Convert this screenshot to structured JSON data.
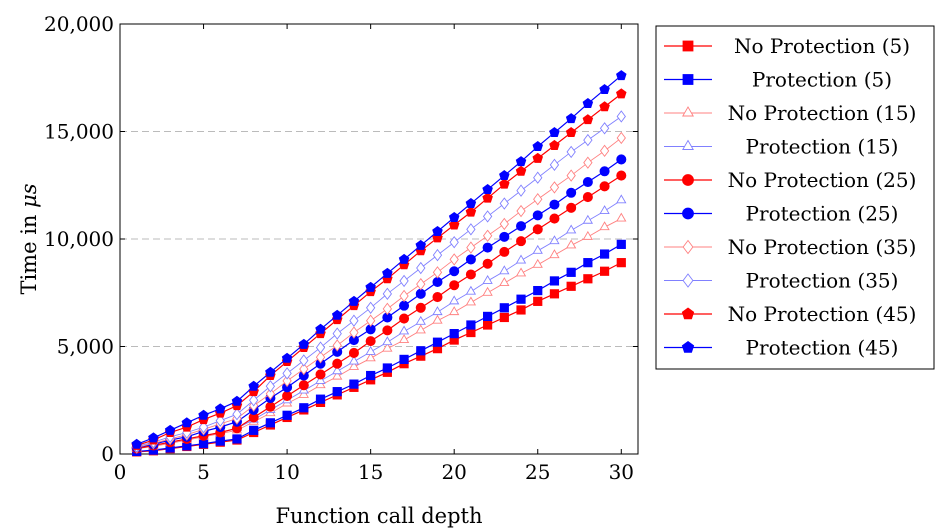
{
  "chart_data": {
    "type": "line",
    "title": "",
    "xlabel": "Function call depth",
    "ylabel": "Time in μs",
    "ylabel_prefix": "Time in ",
    "ylabel_unit": "μs",
    "xlim": [
      0,
      31
    ],
    "ylim": [
      0,
      20000
    ],
    "x_ticks": [
      0,
      5,
      10,
      15,
      20,
      25,
      30
    ],
    "x_tick_labels": [
      "0",
      "5",
      "10",
      "15",
      "20",
      "25",
      "30"
    ],
    "y_ticks": [
      0,
      5000,
      10000,
      15000,
      20000
    ],
    "y_tick_labels": [
      "0",
      "5,000",
      "10,000",
      "15,000",
      "20,000"
    ],
    "grid": "horizontal dashed",
    "legend_position": "outside-right",
    "x": [
      1,
      2,
      3,
      4,
      5,
      6,
      7,
      8,
      9,
      10,
      11,
      12,
      13,
      14,
      15,
      16,
      17,
      18,
      19,
      20,
      21,
      22,
      23,
      24,
      25,
      26,
      27,
      28,
      29,
      30
    ],
    "series": [
      {
        "name": "No Protection (5)",
        "color": "#ff0000",
        "marker": "square",
        "filled": true,
        "values": [
          100,
          150,
          250,
          350,
          450,
          550,
          650,
          1000,
          1350,
          1700,
          2050,
          2400,
          2750,
          3100,
          3450,
          3800,
          4200,
          4550,
          4900,
          5300,
          5650,
          6000,
          6350,
          6700,
          7100,
          7450,
          7800,
          8150,
          8500,
          8900
        ]
      },
      {
        "name": "Protection (5)",
        "color": "#0000ff",
        "marker": "square",
        "filled": true,
        "values": [
          120,
          180,
          280,
          380,
          480,
          600,
          700,
          1100,
          1450,
          1800,
          2150,
          2550,
          2900,
          3250,
          3650,
          4000,
          4400,
          4800,
          5200,
          5600,
          6000,
          6400,
          6800,
          7200,
          7600,
          8050,
          8450,
          8900,
          9300,
          9750
        ]
      },
      {
        "name": "No Protection (15)",
        "color": "#ff8080",
        "marker": "triangle",
        "filled": false,
        "values": [
          250,
          350,
          500,
          650,
          800,
          950,
          1100,
          1500,
          1900,
          2350,
          2750,
          3200,
          3600,
          4050,
          4450,
          4900,
          5300,
          5750,
          6200,
          6600,
          7050,
          7500,
          7950,
          8400,
          8800,
          9250,
          9700,
          10100,
          10550,
          10950
        ]
      },
      {
        "name": "Protection (15)",
        "color": "#8080ff",
        "marker": "triangle",
        "filled": false,
        "values": [
          280,
          400,
          550,
          700,
          850,
          1000,
          1200,
          1600,
          2050,
          2500,
          2950,
          3400,
          3850,
          4300,
          4750,
          5200,
          5700,
          6150,
          6600,
          7100,
          7550,
          8050,
          8500,
          9000,
          9450,
          9900,
          10400,
          10850,
          11300,
          11800
        ]
      },
      {
        "name": "No Protection (25)",
        "color": "#ff0000",
        "marker": "circle",
        "filled": true,
        "values": [
          250,
          400,
          550,
          700,
          850,
          1000,
          1200,
          1700,
          2200,
          2700,
          3200,
          3700,
          4200,
          4700,
          5250,
          5750,
          6300,
          6800,
          7300,
          7850,
          8350,
          8850,
          9400,
          9900,
          10450,
          10950,
          11450,
          11950,
          12450,
          12950
        ]
      },
      {
        "name": "Protection (25)",
        "color": "#0000ff",
        "marker": "circle",
        "filled": true,
        "values": [
          300,
          450,
          650,
          800,
          1050,
          1250,
          1500,
          2050,
          2600,
          3100,
          3650,
          4200,
          4750,
          5300,
          5800,
          6350,
          6900,
          7450,
          8000,
          8500,
          9050,
          9600,
          10100,
          10600,
          11100,
          11600,
          12150,
          12650,
          13150,
          13700
        ]
      },
      {
        "name": "No Protection (35)",
        "color": "#ff8080",
        "marker": "diamond",
        "filled": false,
        "values": [
          300,
          500,
          700,
          900,
          1150,
          1400,
          1650,
          2250,
          2800,
          3400,
          3950,
          4500,
          5050,
          5650,
          6200,
          6750,
          7350,
          7900,
          8450,
          9050,
          9600,
          10150,
          10700,
          11300,
          11850,
          12400,
          12950,
          13550,
          14100,
          14700
        ]
      },
      {
        "name": "Protection (35)",
        "color": "#8080ff",
        "marker": "diamond",
        "filled": false,
        "values": [
          350,
          550,
          800,
          1000,
          1250,
          1550,
          1850,
          2500,
          3150,
          3750,
          4350,
          4950,
          5600,
          6200,
          6800,
          7450,
          8050,
          8650,
          9250,
          9850,
          10450,
          11050,
          11650,
          12250,
          12850,
          13450,
          14050,
          14600,
          15150,
          15700
        ]
      },
      {
        "name": "No Protection (45)",
        "color": "#ff0000",
        "marker": "pentagon",
        "filled": true,
        "values": [
          400,
          650,
          1000,
          1250,
          1600,
          1900,
          2250,
          2900,
          3650,
          4300,
          4950,
          5600,
          6250,
          6900,
          7550,
          8150,
          8800,
          9450,
          10050,
          10650,
          11250,
          11900,
          12550,
          13150,
          13750,
          14350,
          14950,
          15550,
          16150,
          16750
        ]
      },
      {
        "name": "Protection (45)",
        "color": "#0000ff",
        "marker": "pentagon",
        "filled": true,
        "values": [
          450,
          750,
          1100,
          1450,
          1800,
          2100,
          2450,
          3150,
          3800,
          4450,
          5100,
          5800,
          6450,
          7100,
          7750,
          8400,
          9050,
          9700,
          10350,
          11000,
          11650,
          12300,
          12950,
          13600,
          14300,
          14950,
          15600,
          16300,
          16950,
          17600
        ]
      }
    ]
  }
}
